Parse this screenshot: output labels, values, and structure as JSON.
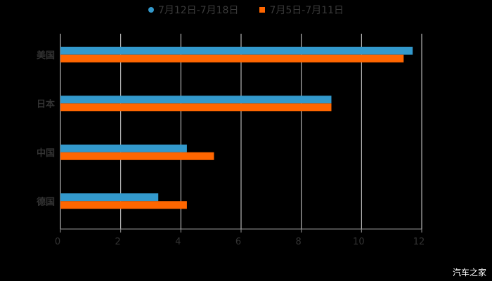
{
  "chart_data": {
    "type": "bar",
    "orientation": "horizontal",
    "title": "",
    "categories": [
      "美国",
      "日本",
      "中国",
      "德国"
    ],
    "series": [
      {
        "name": "7月12日-7月18日",
        "color": "#3399cc",
        "values": [
          11.7,
          9.0,
          4.2,
          3.25
        ]
      },
      {
        "name": "7月5日-7月11日",
        "color": "#ff6600",
        "values": [
          11.4,
          9.0,
          5.1,
          4.2
        ]
      }
    ],
    "xlabel": "",
    "ylabel": "",
    "xlim": [
      0,
      12
    ],
    "xticks": [
      "0",
      "2",
      "4",
      "6",
      "8",
      "10",
      "12"
    ],
    "grid": true,
    "legend_position": "top"
  },
  "legend": {
    "s1": "7月12日-7月18日",
    "s2": "7月5日-7月11日"
  },
  "watermark": "汽车之家"
}
